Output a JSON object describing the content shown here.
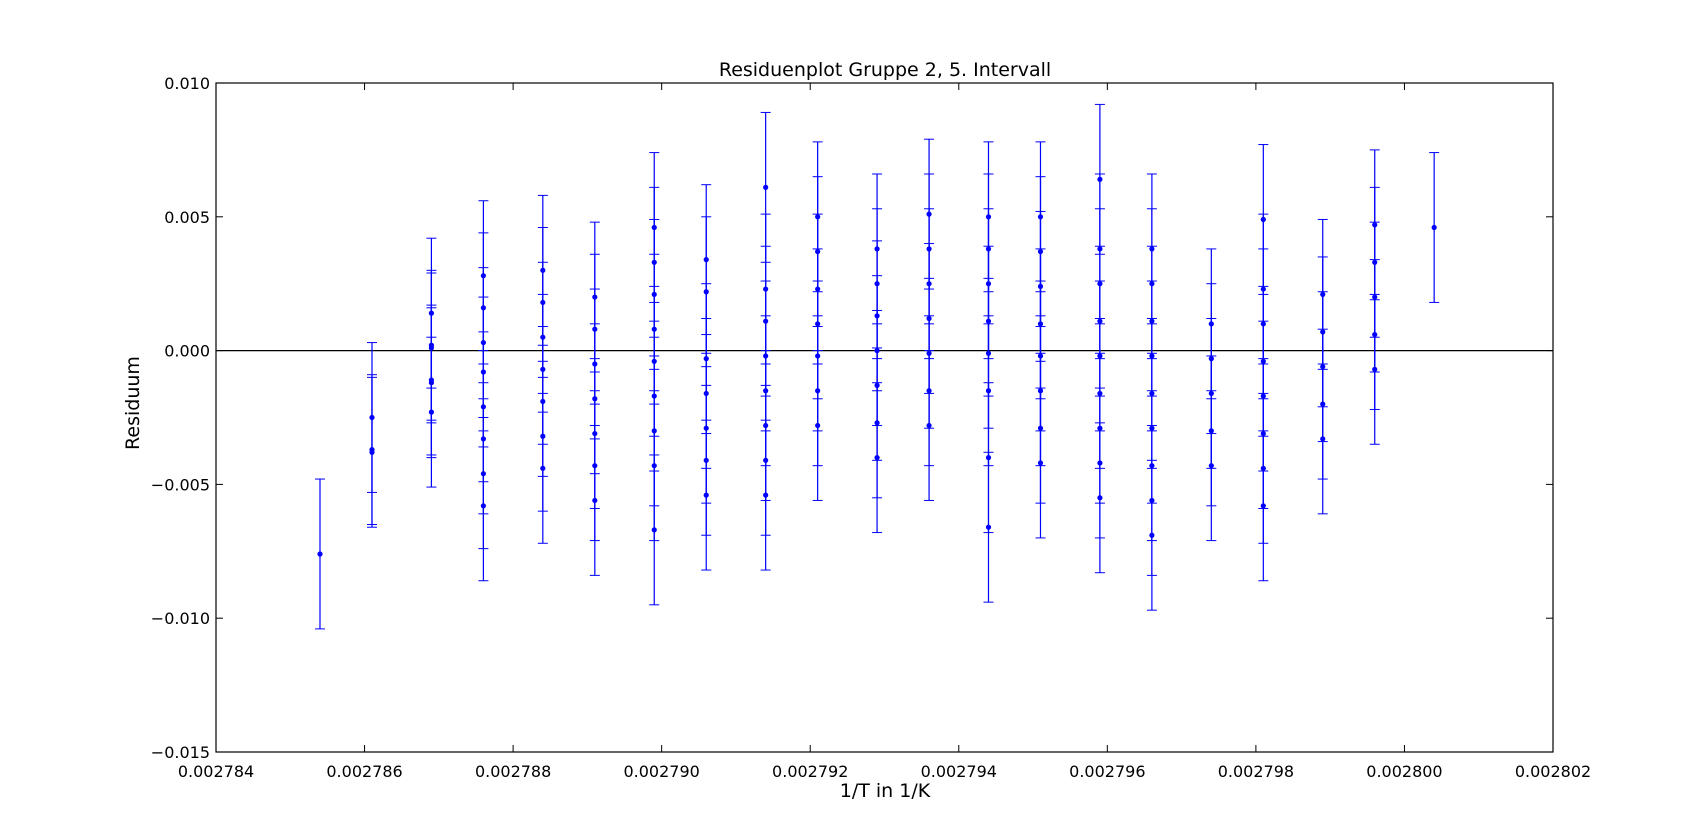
{
  "chart_data": {
    "type": "scatter",
    "title": "Residuenplot Gruppe 2, 5. Intervall",
    "xlabel": "1/T in 1/K",
    "ylabel": "Residuum",
    "xlim": [
      0.002784,
      0.002802
    ],
    "ylim": [
      -0.015,
      0.01
    ],
    "xticks": [
      "0.002784",
      "0.002786",
      "0.002788",
      "0.002790",
      "0.002792",
      "0.002794",
      "0.002796",
      "0.002798",
      "0.002800",
      "0.002802"
    ],
    "yticks": [
      "0.010",
      "0.005",
      "0.000",
      "−0.005",
      "−0.010",
      "−0.015"
    ],
    "ytick_values": [
      0.01,
      0.005,
      0.0,
      -0.005,
      -0.01,
      -0.015
    ],
    "reference_line_y": 0.0,
    "grid": false,
    "colors": {
      "series": "#0000ff",
      "axes": "#000000"
    },
    "error_bar_half_width": 0.0028,
    "columns": [
      {
        "x": 0.0027854,
        "y": [
          -0.0076
        ]
      },
      {
        "x": 0.0027861,
        "y": [
          -0.0025,
          -0.0037,
          -0.0038
        ]
      },
      {
        "x": 0.0027869,
        "y": [
          0.0014,
          0.0002,
          0.0001,
          -0.0011,
          -0.0012,
          -0.0023
        ]
      },
      {
        "x": 0.0027876,
        "y": [
          0.0028,
          0.0016,
          0.0003,
          -0.0008,
          -0.0021,
          -0.0033,
          -0.0046,
          -0.0058
        ]
      },
      {
        "x": 0.0027884,
        "y": [
          0.003,
          0.0018,
          0.0005,
          -0.0007,
          -0.0019,
          -0.0032,
          -0.0044
        ]
      },
      {
        "x": 0.0027891,
        "y": [
          0.002,
          0.0008,
          -0.0005,
          -0.0018,
          -0.0031,
          -0.0043,
          -0.0056
        ]
      },
      {
        "x": 0.0027899,
        "y": [
          0.0046,
          0.0033,
          0.0021,
          0.0008,
          -0.0004,
          -0.0017,
          -0.003,
          -0.0043,
          -0.0067
        ]
      },
      {
        "x": 0.0027906,
        "y": [
          0.0034,
          0.0022,
          -0.0003,
          -0.0016,
          -0.0029,
          -0.0041,
          -0.0054
        ]
      },
      {
        "x": 0.0027914,
        "y": [
          0.0061,
          0.0023,
          0.0011,
          -0.0002,
          -0.0015,
          -0.0028,
          -0.0041,
          -0.0054
        ]
      },
      {
        "x": 0.0027921,
        "y": [
          0.005,
          0.0037,
          0.0023,
          0.001,
          -0.0002,
          -0.0015,
          -0.0028
        ]
      },
      {
        "x": 0.0027929,
        "y": [
          0.0038,
          0.0025,
          0.0013,
          0.0,
          -0.0013,
          -0.0027,
          -0.004
        ]
      },
      {
        "x": 0.0027936,
        "y": [
          0.0051,
          0.0038,
          0.0025,
          0.0012,
          -0.0001,
          -0.0015,
          -0.0028
        ]
      },
      {
        "x": 0.0027944,
        "y": [
          0.005,
          0.0038,
          0.0025,
          0.0011,
          -0.0001,
          -0.0015,
          -0.004,
          -0.0066
        ]
      },
      {
        "x": 0.0027951,
        "y": [
          0.005,
          0.0037,
          0.0024,
          0.001,
          -0.0002,
          -0.0015,
          -0.0029,
          -0.0042
        ]
      },
      {
        "x": 0.0027959,
        "y": [
          0.0064,
          0.0038,
          0.0025,
          0.0011,
          -0.0002,
          -0.0016,
          -0.0029,
          -0.0042,
          -0.0055
        ]
      },
      {
        "x": 0.0027966,
        "y": [
          0.0038,
          0.0025,
          0.0011,
          -0.0002,
          -0.0016,
          -0.0029,
          -0.0043,
          -0.0056,
          -0.0069
        ]
      },
      {
        "x": 0.0027974,
        "y": [
          0.001,
          -0.0003,
          -0.0016,
          -0.003,
          -0.0043
        ]
      },
      {
        "x": 0.0027981,
        "y": [
          0.0049,
          0.0023,
          0.001,
          -0.0004,
          -0.0017,
          -0.0031,
          -0.0044,
          -0.0058
        ]
      },
      {
        "x": 0.0027989,
        "y": [
          0.0021,
          0.0007,
          -0.0006,
          -0.002,
          -0.0033
        ]
      },
      {
        "x": 0.0027996,
        "y": [
          0.0047,
          0.0033,
          0.002,
          0.0006,
          -0.0007
        ]
      },
      {
        "x": 0.0028004,
        "y": [
          0.0046
        ]
      }
    ]
  }
}
